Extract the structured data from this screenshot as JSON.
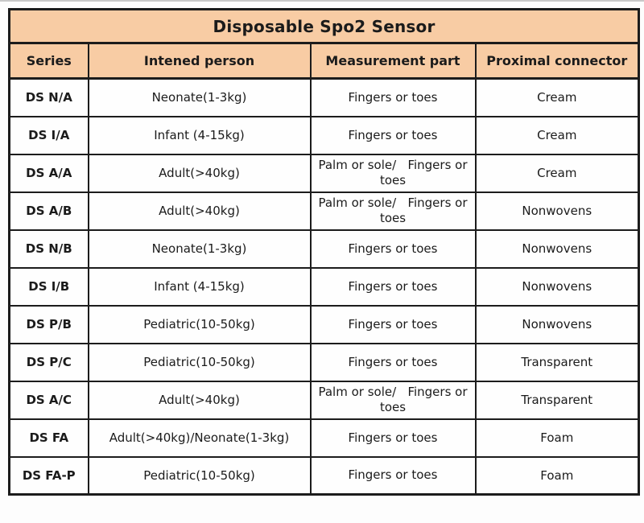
{
  "table": {
    "title": "Disposable Spo2 Sensor",
    "columns": [
      "Series",
      "Intened person",
      "Measurement part",
      "Proximal connector"
    ],
    "rows": [
      {
        "series": "DS N/A",
        "person": "Neonate(1-3kg)",
        "part": "Fingers or toes",
        "connector": "Cream"
      },
      {
        "series": "DS I/A",
        "person": "Infant (4-15kg)",
        "part": "Fingers or toes",
        "connector": "Cream"
      },
      {
        "series": "DS A/A",
        "person": "Adult(>40kg)",
        "part": "Palm or sole/   Fingers or toes",
        "connector": "Cream"
      },
      {
        "series": "DS A/B",
        "person": "Adult(>40kg)",
        "part": "Palm or sole/   Fingers or toes",
        "connector": "Nonwovens"
      },
      {
        "series": "DS N/B",
        "person": "Neonate(1-3kg)",
        "part": "Fingers or toes",
        "connector": "Nonwovens"
      },
      {
        "series": "DS I/B",
        "person": "Infant (4-15kg)",
        "part": "Fingers or toes",
        "connector": "Nonwovens"
      },
      {
        "series": "DS P/B",
        "person": "Pediatric(10-50kg)",
        "part": "Fingers or toes",
        "connector": "Nonwovens"
      },
      {
        "series": "DS P/C",
        "person": "Pediatric(10-50kg)",
        "part": "Fingers or toes",
        "connector": "Transparent"
      },
      {
        "series": "DS A/C",
        "person": "Adult(>40kg)",
        "part": "Palm or sole/   Fingers or toes",
        "connector": "Transparent"
      },
      {
        "series": "DS FA",
        "person": "Adult(>40kg)/Neonate(1-3kg)",
        "part": "Fingers or toes",
        "connector": "Foam"
      },
      {
        "series": "DS FA-P",
        "person": "Pediatric(10-50kg)",
        "part": "Fingers or toes",
        "connector": "Foam"
      }
    ],
    "colors": {
      "header_bg": "#f8cca4",
      "body_bg": "#fefefe",
      "border": "#1c1c1c",
      "text": "#1b1b1b"
    }
  }
}
